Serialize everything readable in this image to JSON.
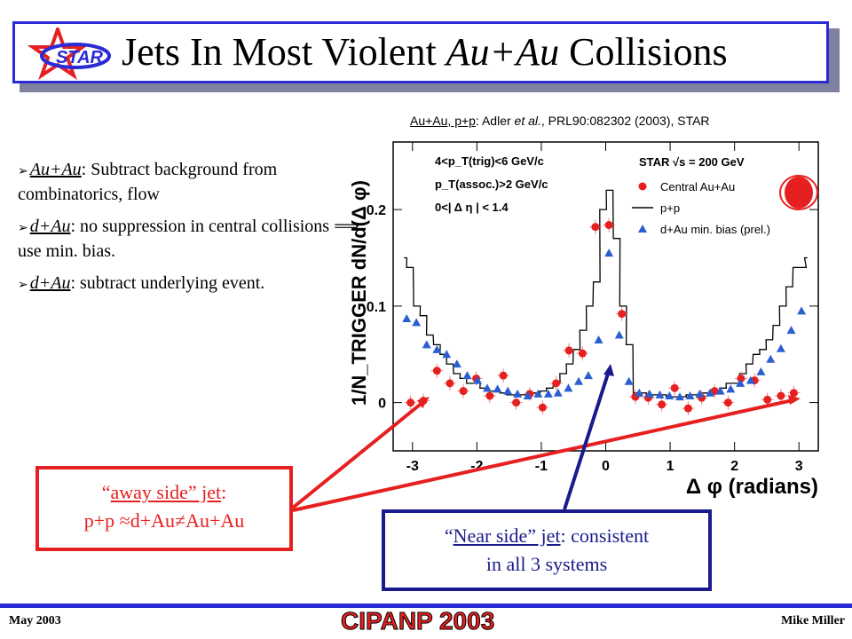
{
  "slide": {
    "title_part1": "Jets In Most Violent ",
    "title_italic": "Au+Au",
    "title_part2": " Collisions",
    "logo_text": "STAR",
    "citation_bold": "Au+Au, p+p",
    "citation_rest_pre": ": Adler ",
    "citation_etal": "et al.",
    "citation_rest_post": ", PRL90:082302 (2003), STAR"
  },
  "bullets": [
    {
      "marker": "➢",
      "lead": "Au+Au",
      "text": ": Subtract background from combinatorics, flow"
    },
    {
      "marker": "➢",
      "lead": "d+Au",
      "text": ": no suppression in central collisions ⟹ use min. bias."
    },
    {
      "marker": "➢",
      "lead": "d+Au",
      "text": ": subtract underlying event."
    }
  ],
  "callouts": {
    "away": {
      "line1_pre": "“",
      "line1_u": "away side” jet",
      "line1_post": ":",
      "line2": "p+p ≈d+Au≠Au+Au"
    },
    "near": {
      "line1_pre": "“",
      "line1_u": "Near side” jet",
      "line1_post": ": consistent",
      "line2": "in all 3 systems"
    }
  },
  "footer": {
    "left": "May 2003",
    "center": "CIPANP 2003",
    "right": "Mike Miller"
  },
  "colors": {
    "accent_blue": "#2b2bd6",
    "red": "#e62020",
    "dark_blue": "#1a1a8c",
    "dau_blue": "#2b5fd0"
  },
  "chart_data": {
    "type": "scatter",
    "xlabel": "Δ φ (radians)",
    "ylabel": "1/N_TRIGGER dN/d(Δ φ)",
    "xlim": [
      -3.3,
      3.3
    ],
    "ylim": [
      -0.05,
      0.27
    ],
    "xticks": [
      "-3",
      "-2",
      "-1",
      "0",
      "1",
      "2",
      "3"
    ],
    "yticks": [
      "0",
      "0.1",
      "0.2"
    ],
    "cuts": [
      "4<p_T(trig)<6 GeV/c",
      "p_T(assoc.)>2 GeV/c",
      "0<| Δ η | < 1.4"
    ],
    "legend": {
      "header": "STAR √s = 200 GeV",
      "entries": [
        "Central Au+Au",
        "p+p",
        "d+Au min. bias (prel.)"
      ]
    },
    "series": [
      {
        "name": "Central Au+Au",
        "x": [
          -3.03,
          -2.83,
          -2.62,
          -2.42,
          -2.21,
          -2.01,
          -1.8,
          -1.59,
          -1.39,
          -1.18,
          -0.98,
          -0.77,
          -0.57,
          -0.36,
          -0.16,
          0.05,
          0.25,
          0.46,
          0.66,
          0.87,
          1.07,
          1.28,
          1.49,
          1.69,
          1.9,
          2.1,
          2.31,
          2.51,
          2.72,
          2.92
        ],
        "y": [
          0.0,
          0.002,
          0.033,
          0.02,
          0.012,
          0.025,
          0.007,
          0.028,
          0.0,
          0.009,
          -0.005,
          0.02,
          0.054,
          0.051,
          0.182,
          0.184,
          0.092,
          0.006,
          0.005,
          -0.002,
          0.015,
          -0.006,
          0.005,
          0.012,
          0.0,
          0.025,
          0.023,
          0.003,
          0.007,
          0.01
        ]
      },
      {
        "name": "p+p",
        "x": [
          -3.14,
          -3.04,
          -2.93,
          -2.83,
          -2.73,
          -2.62,
          -2.52,
          -2.42,
          -2.31,
          -2.21,
          -2.11,
          -2.0,
          -1.9,
          -1.8,
          -1.69,
          -1.59,
          -1.49,
          -1.38,
          -1.28,
          -1.18,
          -1.07,
          -0.97,
          -0.87,
          -0.76,
          -0.66,
          -0.56,
          -0.45,
          -0.35,
          -0.25,
          -0.14,
          -0.04,
          0.06,
          0.17,
          0.27,
          0.37,
          0.48,
          0.58,
          0.68,
          0.79,
          0.89,
          0.99,
          1.1,
          1.2,
          1.3,
          1.41,
          1.51,
          1.61,
          1.72,
          1.82,
          1.92,
          2.03,
          2.13,
          2.23,
          2.34,
          2.44,
          2.54,
          2.65,
          2.75,
          2.85,
          2.96,
          3.06,
          3.14
        ],
        "y": [
          0.15,
          0.14,
          0.1,
          0.09,
          0.07,
          0.06,
          0.05,
          0.04,
          0.03,
          0.025,
          0.02,
          0.02,
          0.015,
          0.012,
          0.012,
          0.01,
          0.008,
          0.008,
          0.008,
          0.01,
          0.01,
          0.012,
          0.015,
          0.02,
          0.03,
          0.04,
          0.055,
          0.075,
          0.1,
          0.125,
          0.2,
          0.22,
          0.17,
          0.1,
          0.06,
          0.01,
          0.01,
          0.008,
          0.008,
          0.008,
          0.006,
          0.006,
          0.006,
          0.008,
          0.008,
          0.01,
          0.01,
          0.012,
          0.015,
          0.02,
          0.02,
          0.03,
          0.04,
          0.05,
          0.055,
          0.065,
          0.08,
          0.1,
          0.12,
          0.14,
          0.14,
          0.15
        ]
      },
      {
        "name": "d+Au min. bias (prel.)",
        "x": [
          -3.09,
          -2.94,
          -2.78,
          -2.62,
          -2.47,
          -2.31,
          -2.15,
          -1.99,
          -1.84,
          -1.68,
          -1.52,
          -1.37,
          -1.21,
          -1.05,
          -0.89,
          -0.74,
          -0.58,
          -0.42,
          -0.27,
          -0.11,
          0.05,
          0.21,
          0.36,
          0.52,
          0.68,
          0.84,
          0.99,
          1.15,
          1.31,
          1.46,
          1.62,
          1.78,
          1.94,
          2.09,
          2.25,
          2.41,
          2.56,
          2.72,
          2.88,
          3.04
        ],
        "y": [
          0.087,
          0.083,
          0.06,
          0.055,
          0.05,
          0.04,
          0.028,
          0.023,
          0.015,
          0.014,
          0.012,
          0.009,
          0.007,
          0.009,
          0.009,
          0.01,
          0.015,
          0.022,
          0.028,
          0.065,
          0.155,
          0.07,
          0.022,
          0.01,
          0.009,
          0.008,
          0.007,
          0.006,
          0.007,
          0.009,
          0.01,
          0.012,
          0.014,
          0.02,
          0.023,
          0.032,
          0.045,
          0.056,
          0.075,
          0.095
        ]
      }
    ]
  }
}
